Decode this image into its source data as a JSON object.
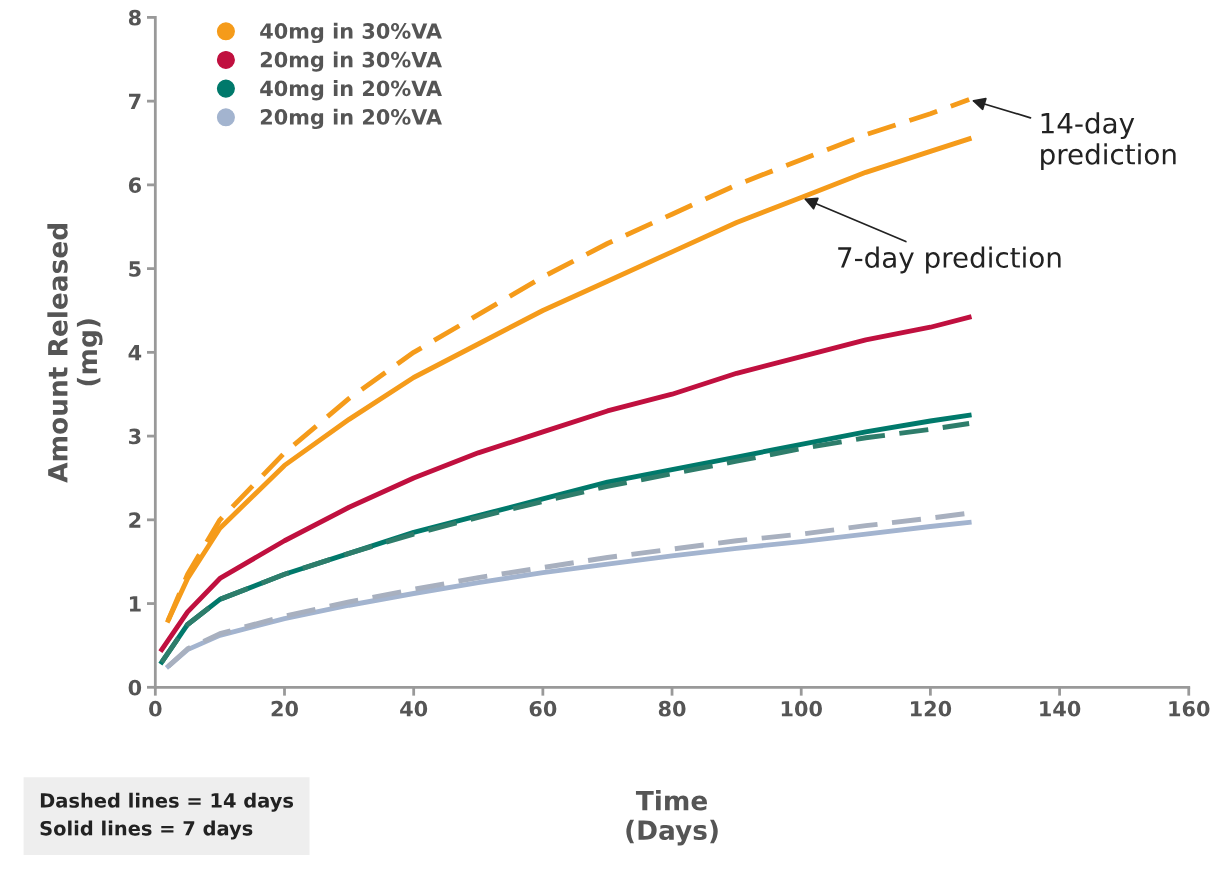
{
  "chart_data": {
    "type": "line",
    "xlabel": "Time\n(Days)",
    "ylabel": "Amount Released\n(mg)",
    "xlim": [
      0,
      160
    ],
    "xticks": [
      0,
      20,
      40,
      60,
      80,
      100,
      120,
      140,
      160
    ],
    "ylim": [
      0,
      8
    ],
    "yticks": [
      0,
      1,
      2,
      3,
      4,
      5,
      6,
      7,
      8
    ],
    "grid": false,
    "legend": "top left",
    "series": [
      {
        "name": "40mg in 30%VA",
        "color": "#f59b1a",
        "line_style": "solid",
        "x": [
          2,
          5,
          10,
          20,
          30,
          40,
          50,
          60,
          70,
          80,
          90,
          100,
          110,
          120,
          126
        ],
        "values": [
          0.8,
          1.3,
          1.9,
          2.65,
          3.2,
          3.7,
          4.1,
          4.5,
          4.85,
          5.2,
          5.55,
          5.85,
          6.15,
          6.4,
          6.55
        ]
      },
      {
        "color": "#f59b1a",
        "line_style": "dashed",
        "x": [
          2,
          5,
          10,
          20,
          30,
          40,
          50,
          60,
          70,
          80,
          90,
          100,
          110,
          120,
          126
        ],
        "values": [
          0.8,
          1.35,
          2.0,
          2.8,
          3.45,
          4.0,
          4.45,
          4.9,
          5.3,
          5.65,
          6.0,
          6.3,
          6.6,
          6.85,
          7.02
        ]
      },
      {
        "name": "20mg in 30%VA",
        "color": "#c0103f",
        "line_style": "solid",
        "x": [
          1,
          5,
          10,
          20,
          30,
          40,
          50,
          60,
          70,
          80,
          90,
          100,
          110,
          120,
          126
        ],
        "values": [
          0.45,
          0.9,
          1.3,
          1.75,
          2.15,
          2.5,
          2.8,
          3.05,
          3.3,
          3.5,
          3.75,
          3.95,
          4.15,
          4.3,
          4.42
        ]
      },
      {
        "name": "40mg in 20%VA",
        "color": "#00796b",
        "line_style": "solid",
        "x": [
          1,
          5,
          10,
          20,
          30,
          40,
          50,
          60,
          70,
          80,
          90,
          100,
          110,
          120,
          126
        ],
        "values": [
          0.3,
          0.75,
          1.05,
          1.35,
          1.6,
          1.85,
          2.05,
          2.25,
          2.45,
          2.6,
          2.75,
          2.9,
          3.05,
          3.18,
          3.25
        ]
      },
      {
        "color": "#2e7d6b",
        "line_style": "dashed",
        "x": [
          1,
          5,
          10,
          20,
          30,
          40,
          50,
          60,
          70,
          80,
          90,
          100,
          110,
          120,
          126
        ],
        "values": [
          0.3,
          0.75,
          1.05,
          1.35,
          1.6,
          1.83,
          2.03,
          2.22,
          2.4,
          2.55,
          2.7,
          2.85,
          2.98,
          3.08,
          3.15
        ]
      },
      {
        "name": "20mg in 20%VA",
        "color": "#a3b4cf",
        "line_style": "solid",
        "x": [
          2,
          5,
          10,
          20,
          30,
          40,
          50,
          60,
          70,
          80,
          90,
          100,
          110,
          120,
          126
        ],
        "values": [
          0.25,
          0.45,
          0.62,
          0.82,
          0.98,
          1.12,
          1.25,
          1.37,
          1.47,
          1.57,
          1.66,
          1.74,
          1.83,
          1.92,
          1.97
        ]
      },
      {
        "color": "#a8b0bf",
        "line_style": "dashed",
        "x": [
          2,
          5,
          10,
          20,
          30,
          40,
          50,
          60,
          70,
          80,
          90,
          100,
          110,
          120,
          126
        ],
        "values": [
          0.25,
          0.46,
          0.64,
          0.85,
          1.02,
          1.17,
          1.31,
          1.43,
          1.55,
          1.65,
          1.75,
          1.83,
          1.93,
          2.02,
          2.08
        ]
      }
    ],
    "annotations": [
      {
        "text": "14-day\nprediction",
        "x": 126,
        "y": 7.02
      },
      {
        "text": "7-day prediction",
        "x": 100,
        "y": 5.85
      },
      "Dashed lines = 14 days\nSolid lines = 7 days"
    ]
  }
}
